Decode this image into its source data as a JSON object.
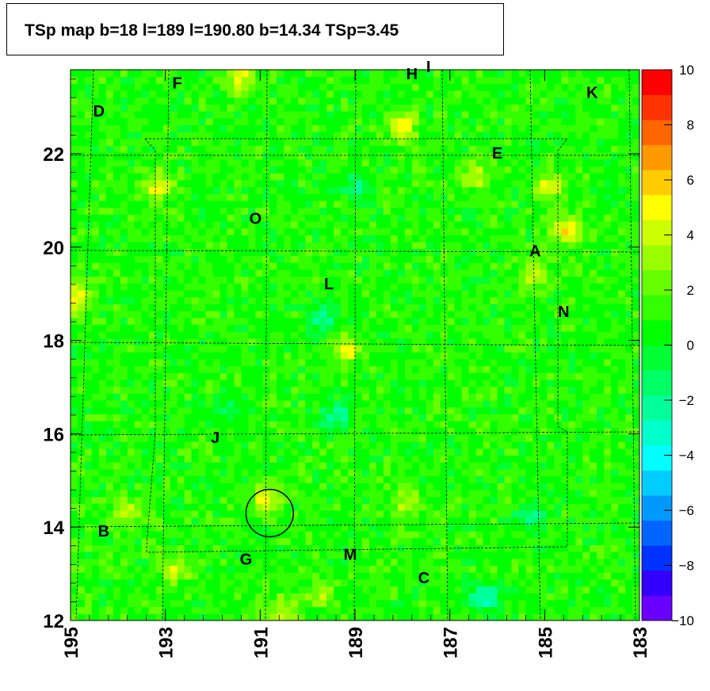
{
  "title": "TSp map b=18 l=189 l=190.80 b=14.34 TSp=3.45",
  "chart_data": {
    "type": "heatmap",
    "title": "TSp map b=18 l=189 l=190.80 b=14.34 TSp=3.45",
    "xlabel": "",
    "ylabel": "",
    "xlim": [
      195,
      183
    ],
    "ylim": [
      12,
      23.8
    ],
    "x_ticks": [
      "195",
      "193",
      "191",
      "189",
      "187",
      "185",
      "183"
    ],
    "y_ticks": [
      "12",
      "14",
      "16",
      "18",
      "20",
      "22"
    ],
    "colorbar": {
      "range": [
        -10,
        10
      ],
      "ticks": [
        "10",
        "8",
        "6",
        "4",
        "2",
        "0",
        "−2",
        "−4",
        "−6",
        "−8",
        "−10"
      ],
      "colors": [
        "#6a00ff",
        "#3300ff",
        "#0033ff",
        "#0066ff",
        "#0099ff",
        "#00ccff",
        "#00ffff",
        "#00ffcc",
        "#00ff99",
        "#00ff66",
        "#00ff33",
        "#00ff00",
        "#33ff00",
        "#66ff00",
        "#99ff00",
        "#ccff00",
        "#ffff00",
        "#ffcc00",
        "#ff9900",
        "#ff6600",
        "#ff3300",
        "#ff0000"
      ]
    },
    "background_value_range": [
      -3,
      3
    ],
    "hotspots": [
      {
        "l": 193.15,
        "b": 21.3,
        "value": 4
      },
      {
        "l": 191.4,
        "b": 23.6,
        "value": 4
      },
      {
        "l": 188.0,
        "b": 22.6,
        "value": 4
      },
      {
        "l": 184.9,
        "b": 21.3,
        "value": 4
      },
      {
        "l": 184.55,
        "b": 20.35,
        "value": 5
      },
      {
        "l": 194.9,
        "b": 18.9,
        "value": 4
      },
      {
        "l": 189.2,
        "b": 17.8,
        "value": 4
      },
      {
        "l": 190.85,
        "b": 14.6,
        "value": 4
      },
      {
        "l": 187.9,
        "b": 14.5,
        "value": 3
      },
      {
        "l": 192.8,
        "b": 13.1,
        "value": 3
      },
      {
        "l": 189.7,
        "b": 12.6,
        "value": 3
      },
      {
        "l": 190.5,
        "b": 12.2,
        "value": 3
      },
      {
        "l": 186.4,
        "b": 21.5,
        "value": 3
      },
      {
        "l": 185.2,
        "b": 19.4,
        "value": 3
      },
      {
        "l": 193.8,
        "b": 14.3,
        "value": 3
      }
    ],
    "coldspots": [
      {
        "l": 189.0,
        "b": 21.3,
        "value": -3
      },
      {
        "l": 189.7,
        "b": 18.5,
        "value": -3
      },
      {
        "l": 189.4,
        "b": 16.4,
        "value": -3
      },
      {
        "l": 186.3,
        "b": 12.5,
        "value": -4
      },
      {
        "l": 185.3,
        "b": 14.2,
        "value": -3
      },
      {
        "l": 191.6,
        "b": 16.5,
        "value": -2
      }
    ],
    "source_circle": {
      "l": 190.8,
      "b": 14.3,
      "radius_deg": 0.5
    },
    "labels": [
      {
        "text": "H",
        "l": 187.8,
        "b": 23.6
      },
      {
        "text": "I",
        "l": 187.45,
        "b": 23.75
      },
      {
        "text": "F",
        "l": 192.75,
        "b": 23.4
      },
      {
        "text": "K",
        "l": 184.0,
        "b": 23.2
      },
      {
        "text": "D",
        "l": 194.4,
        "b": 22.8
      },
      {
        "text": "E",
        "l": 186.0,
        "b": 21.9
      },
      {
        "text": "O",
        "l": 191.1,
        "b": 20.5
      },
      {
        "text": "A",
        "l": 185.2,
        "b": 19.8
      },
      {
        "text": "L",
        "l": 189.55,
        "b": 19.1
      },
      {
        "text": "N",
        "l": 184.6,
        "b": 18.5
      },
      {
        "text": "J",
        "l": 191.95,
        "b": 15.8
      },
      {
        "text": "B",
        "l": 194.3,
        "b": 13.8
      },
      {
        "text": "G",
        "l": 191.3,
        "b": 13.2
      },
      {
        "text": "M",
        "l": 189.1,
        "b": 13.3
      },
      {
        "text": "C",
        "l": 187.55,
        "b": 12.8
      }
    ]
  }
}
